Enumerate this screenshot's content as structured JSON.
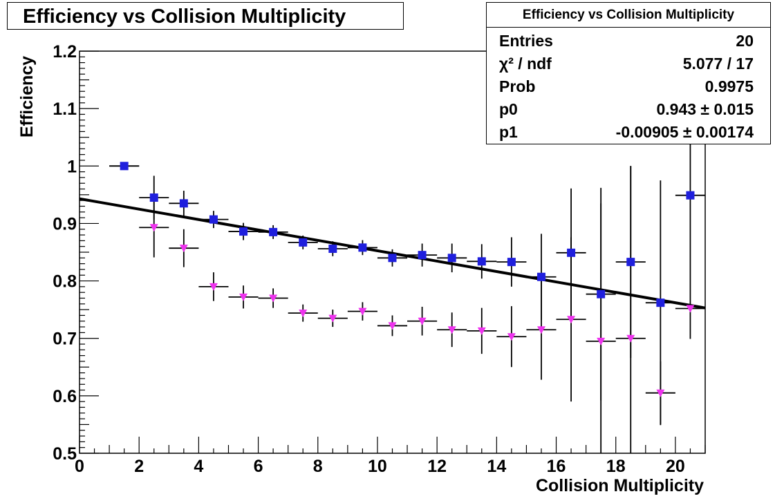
{
  "title": "Efficiency vs Collision Multiplicity",
  "stats": {
    "title": "Efficiency vs Collision Multiplicity",
    "rows": [
      {
        "label": "Entries",
        "value": "20"
      },
      {
        "label": "χ² / ndf",
        "value": "5.077 / 17"
      },
      {
        "label": "Prob",
        "value": "0.9975"
      },
      {
        "label": "p0",
        "value": "0.943 ± 0.015"
      },
      {
        "label": "p1",
        "value": "-0.00905 ± 0.00174"
      }
    ]
  },
  "chart_data": {
    "type": "scatter",
    "title": "Efficiency vs Collision Multiplicity",
    "xlabel": "Collision Multiplicity",
    "ylabel": "Efficiency",
    "xlim": [
      0,
      21
    ],
    "ylim": [
      0.5,
      1.2
    ],
    "x_ticks": [
      "0",
      "2",
      "4",
      "6",
      "8",
      "10",
      "12",
      "14",
      "16",
      "18",
      "20"
    ],
    "y_ticks": [
      "0.5",
      "0.6",
      "0.7",
      "0.8",
      "0.9",
      "1",
      "1.1",
      "1.2"
    ],
    "series": [
      {
        "marker": "square",
        "color": "#1f1fdd",
        "x": [
          1.5,
          2.5,
          3.5,
          4.5,
          5.5,
          6.5,
          7.5,
          8.5,
          9.5,
          10.5,
          11.5,
          12.5,
          13.5,
          14.5,
          15.5,
          16.5,
          17.5,
          18.5,
          19.5,
          20.5
        ],
        "y": [
          1.0,
          0.945,
          0.935,
          0.907,
          0.886,
          0.885,
          0.867,
          0.856,
          0.858,
          0.84,
          0.845,
          0.84,
          0.834,
          0.833,
          0.807,
          0.849,
          0.777,
          0.833,
          0.762,
          0.949
        ],
        "err": [
          0.0,
          0.038,
          0.022,
          0.015,
          0.015,
          0.012,
          0.012,
          0.013,
          0.013,
          0.015,
          0.02,
          0.025,
          0.03,
          0.043,
          0.075,
          0.112,
          0.185,
          0.167,
          0.213,
          0.25
        ]
      },
      {
        "marker": "triangle-down",
        "color": "#ee33ee",
        "x": [
          1.5,
          2.5,
          3.5,
          4.5,
          5.5,
          6.5,
          7.5,
          8.5,
          9.5,
          10.5,
          11.5,
          12.5,
          13.5,
          14.5,
          15.5,
          16.5,
          17.5,
          18.5,
          19.5,
          20.5
        ],
        "y": [
          1.0,
          0.893,
          0.857,
          0.79,
          0.772,
          0.77,
          0.744,
          0.735,
          0.747,
          0.722,
          0.73,
          0.715,
          0.713,
          0.703,
          0.715,
          0.733,
          0.695,
          0.7,
          0.605,
          0.752
        ],
        "err": [
          0.0,
          0.052,
          0.033,
          0.025,
          0.02,
          0.017,
          0.015,
          0.015,
          0.016,
          0.018,
          0.025,
          0.03,
          0.04,
          0.053,
          0.087,
          0.143,
          0.24,
          0.3,
          0.055,
          0.0
        ]
      }
    ],
    "fit": {
      "p0": 0.943,
      "p1": -0.00905,
      "xlim": [
        0,
        21
      ],
      "color": "#000000"
    }
  }
}
